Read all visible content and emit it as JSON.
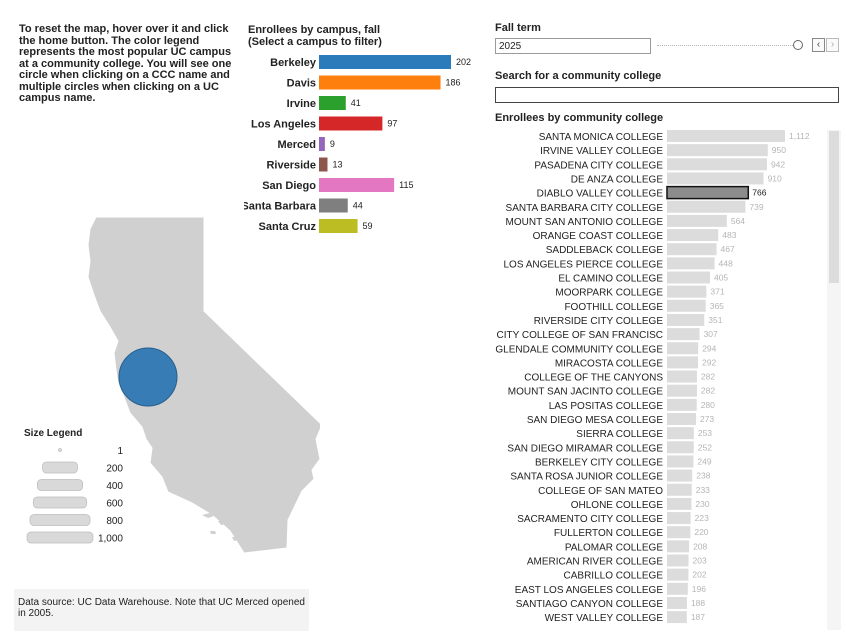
{
  "instructions": "To reset the map, hover over it and click the home button. The color legend represents the most popular UC campus at a community college. You will see one circle when clicking on a CCC name and multiple circles when clicking on a UC campus name.",
  "colors": {
    "bar_gray": "#dcdcdc",
    "selected_bar": "#8c8c8c",
    "map_fill": "#d0d0d0",
    "map_stroke": "#ffffff",
    "circle": "#2f78b4"
  },
  "campus_chart": {
    "title_line1": "Enrollees by campus, fall",
    "title_line2": "(Select a campus to filter)",
    "chart_data": {
      "type": "bar",
      "categories": [
        "Berkeley",
        "Davis",
        "Irvine",
        "Los Angeles",
        "Merced",
        "Riverside",
        "San Diego",
        "Santa Barbara",
        "Santa Cruz"
      ],
      "display_labels": [
        "Berkeley",
        "Davis",
        "Irvine",
        "Los Angeles",
        "Merced",
        "Riverside",
        "San Diego",
        "Santa Barbara",
        "Santa Cruz"
      ],
      "values": [
        202,
        186,
        41,
        97,
        9,
        13,
        115,
        44,
        59
      ],
      "colors": [
        "#2b7bba",
        "#ff7f0e",
        "#2ca02c",
        "#d62728",
        "#9467bd",
        "#8c564b",
        "#e377c2",
        "#7f7f7f",
        "#bcbd22"
      ],
      "xlim": [
        0,
        202
      ]
    }
  },
  "map": {
    "circle_label": "Diablo Valley College location"
  },
  "size_legend": {
    "title": "Size Legend",
    "labels": [
      "1",
      "200",
      "400",
      "600",
      "800",
      "1,000"
    ],
    "values": [
      1,
      200,
      400,
      600,
      800,
      1000
    ]
  },
  "source": "Data source: UC Data Warehouse. Note that UC Merced opened in 2005.",
  "term": {
    "label": "Fall term",
    "value": "2025",
    "prev_icon": "‹",
    "next_icon": "›"
  },
  "search": {
    "label": "Search for a community college",
    "value": "",
    "placeholder": ""
  },
  "ccc_chart": {
    "title": "Enrollees by community college",
    "chart_data": {
      "type": "bar",
      "selected": "DIABLO VALLEY COLLEGE",
      "xlim": [
        0,
        1112
      ],
      "categories": [
        "SANTA MONICA COLLEGE",
        "IRVINE VALLEY COLLEGE",
        "PASADENA CITY COLLEGE",
        "DE ANZA COLLEGE",
        "DIABLO VALLEY COLLEGE",
        "SANTA BARBARA CITY COLLEGE",
        "MOUNT SAN ANTONIO COLLEGE",
        "ORANGE COAST COLLEGE",
        "SADDLEBACK COLLEGE",
        "LOS ANGELES PIERCE COLLEGE",
        "EL CAMINO COLLEGE",
        "MOORPARK COLLEGE",
        "FOOTHILL COLLEGE",
        "RIVERSIDE CITY COLLEGE",
        "CITY COLLEGE OF SAN FRANCISCO",
        "GLENDALE COMMUNITY COLLEGE",
        "MIRACOSTA COLLEGE",
        "COLLEGE OF THE CANYONS",
        "MOUNT SAN JACINTO COLLEGE",
        "LAS POSITAS COLLEGE",
        "SAN DIEGO MESA COLLEGE",
        "SIERRA COLLEGE",
        "SAN DIEGO MIRAMAR COLLEGE",
        "BERKELEY CITY COLLEGE",
        "SANTA ROSA JUNIOR COLLEGE",
        "COLLEGE OF SAN MATEO",
        "OHLONE COLLEGE",
        "SACRAMENTO CITY COLLEGE",
        "FULLERTON COLLEGE",
        "PALOMAR COLLEGE",
        "AMERICAN RIVER COLLEGE",
        "CABRILLO COLLEGE",
        "EAST LOS ANGELES COLLEGE",
        "SANTIAGO CANYON COLLEGE",
        "WEST VALLEY COLLEGE"
      ],
      "display_labels": [
        "SANTA MONICA COLLEGE",
        "IRVINE VALLEY COLLEGE",
        "PASADENA CITY COLLEGE",
        "DE ANZA COLLEGE",
        "DIABLO VALLEY COLLEGE",
        "SANTA BARBARA CITY COLLEGE",
        "MOUNT SAN ANTONIO COLLEGE",
        "ORANGE COAST COLLEGE",
        "SADDLEBACK COLLEGE",
        "LOS ANGELES PIERCE COLLEGE",
        "EL CAMINO COLLEGE",
        "MOORPARK COLLEGE",
        "FOOTHILL COLLEGE",
        "RIVERSIDE CITY COLLEGE",
        "CITY COLLEGE OF SAN FRANCISC",
        "GLENDALE COMMUNITY COLLEGE",
        "MIRACOSTA COLLEGE",
        "COLLEGE OF THE CANYONS",
        "MOUNT SAN JACINTO COLLEGE",
        "LAS POSITAS COLLEGE",
        "SAN DIEGO MESA COLLEGE",
        "SIERRA COLLEGE",
        "SAN DIEGO MIRAMAR COLLEGE",
        "BERKELEY CITY COLLEGE",
        "SANTA ROSA JUNIOR COLLEGE",
        "COLLEGE OF SAN MATEO",
        "OHLONE COLLEGE",
        "SACRAMENTO CITY COLLEGE",
        "FULLERTON COLLEGE",
        "PALOMAR COLLEGE",
        "AMERICAN RIVER COLLEGE",
        "CABRILLO COLLEGE",
        "EAST LOS ANGELES COLLEGE",
        "SANTIAGO CANYON COLLEGE",
        "WEST VALLEY COLLEGE"
      ],
      "values": [
        1112,
        950,
        942,
        910,
        766,
        739,
        564,
        483,
        467,
        448,
        405,
        371,
        365,
        351,
        307,
        294,
        292,
        282,
        282,
        280,
        273,
        253,
        252,
        249,
        238,
        233,
        230,
        223,
        220,
        208,
        203,
        202,
        196,
        188,
        187
      ],
      "value_labels": [
        "1,112",
        "950",
        "942",
        "910",
        "766",
        "739",
        "564",
        "483",
        "467",
        "448",
        "405",
        "371",
        "365",
        "351",
        "307",
        "294",
        "292",
        "282",
        "282",
        "280",
        "273",
        "253",
        "252",
        "249",
        "238",
        "233",
        "230",
        "223",
        "220",
        "208",
        "203",
        "202",
        "196",
        "188",
        "187"
      ]
    }
  }
}
